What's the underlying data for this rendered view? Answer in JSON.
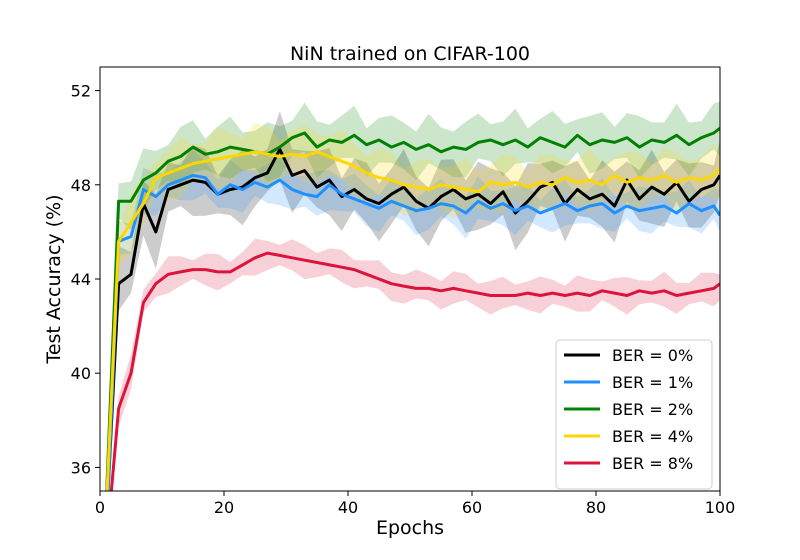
{
  "chart_data": {
    "type": "line",
    "title": "NiN trained on CIFAR-100",
    "xlabel": "Epochs",
    "ylabel": "Test Accuracy (%)",
    "xlim": [
      0,
      100
    ],
    "ylim": [
      35,
      53
    ],
    "xticks": [
      0,
      20,
      40,
      60,
      80,
      100
    ],
    "yticks": [
      36,
      40,
      44,
      48,
      52
    ],
    "grid": false,
    "legend_position": "lower-right",
    "shaded_band": "variability band around each mean line",
    "x": [
      1,
      3,
      5,
      7,
      9,
      11,
      13,
      15,
      17,
      19,
      21,
      23,
      25,
      27,
      29,
      31,
      33,
      35,
      37,
      39,
      41,
      43,
      45,
      47,
      49,
      51,
      53,
      55,
      57,
      59,
      61,
      63,
      65,
      67,
      69,
      71,
      73,
      75,
      77,
      79,
      81,
      83,
      85,
      87,
      89,
      91,
      93,
      95,
      97,
      99,
      100
    ],
    "series": [
      {
        "name": "BER = 0%",
        "color": "#000000",
        "band": 1.2,
        "values": [
          33.5,
          43.8,
          44.2,
          47.2,
          46.0,
          47.8,
          48.0,
          48.2,
          48.1,
          47.6,
          47.8,
          47.9,
          48.3,
          48.5,
          49.5,
          48.4,
          48.6,
          47.9,
          48.2,
          47.5,
          47.8,
          47.4,
          47.2,
          47.6,
          47.9,
          47.3,
          47.0,
          47.5,
          47.8,
          47.4,
          47.6,
          47.2,
          47.7,
          46.8,
          47.3,
          47.9,
          48.1,
          47.2,
          47.8,
          47.4,
          47.6,
          47.1,
          48.2,
          47.4,
          47.9,
          47.6,
          48.1,
          47.3,
          47.8,
          48.0,
          48.4
        ]
      },
      {
        "name": "BER = 1%",
        "color": "#1e90ff",
        "band": 0.8,
        "values": [
          33.0,
          45.6,
          45.8,
          47.8,
          47.5,
          48.0,
          48.2,
          48.4,
          48.3,
          47.6,
          48.0,
          47.8,
          48.1,
          47.9,
          48.2,
          47.8,
          47.6,
          47.5,
          48.0,
          47.6,
          47.4,
          47.2,
          47.0,
          47.3,
          47.1,
          46.9,
          47.0,
          47.2,
          47.1,
          46.8,
          47.3,
          47.0,
          47.2,
          46.9,
          47.1,
          46.8,
          47.0,
          47.2,
          46.9,
          47.1,
          47.2,
          46.8,
          47.1,
          46.9,
          47.0,
          47.1,
          46.8,
          47.2,
          46.9,
          47.1,
          46.7
        ]
      },
      {
        "name": "BER = 2%",
        "color": "#008000",
        "band": 1.0,
        "values": [
          34.5,
          47.3,
          47.3,
          48.2,
          48.5,
          49.0,
          49.2,
          49.6,
          49.3,
          49.4,
          49.6,
          49.5,
          49.4,
          49.3,
          49.6,
          50.0,
          50.2,
          49.6,
          49.9,
          49.8,
          50.1,
          49.7,
          49.9,
          49.6,
          49.8,
          49.5,
          49.7,
          49.4,
          49.6,
          49.5,
          49.8,
          49.9,
          49.7,
          49.9,
          49.6,
          50.0,
          49.8,
          49.6,
          50.1,
          49.7,
          49.9,
          49.8,
          50.0,
          49.6,
          49.9,
          49.8,
          50.1,
          49.7,
          50.0,
          50.2,
          50.4
        ]
      },
      {
        "name": "BER = 4%",
        "color": "#ffd700",
        "band": 1.0,
        "values": [
          34.2,
          45.6,
          46.4,
          47.2,
          48.3,
          48.5,
          48.7,
          48.9,
          49.0,
          49.1,
          49.2,
          49.3,
          49.4,
          49.3,
          49.2,
          49.3,
          49.2,
          49.4,
          49.2,
          49.0,
          48.8,
          48.5,
          48.3,
          48.2,
          48.0,
          47.9,
          47.8,
          48.0,
          47.9,
          47.8,
          47.7,
          48.1,
          48.0,
          48.1,
          47.9,
          48.1,
          48.0,
          48.3,
          48.1,
          48.2,
          48.0,
          48.4,
          48.1,
          48.3,
          48.2,
          48.4,
          48.1,
          48.3,
          48.2,
          48.4,
          48.7
        ]
      },
      {
        "name": "BER = 8%",
        "color": "#dc143c",
        "band": 0.6,
        "values": [
          32.5,
          38.5,
          40.0,
          43.0,
          43.8,
          44.2,
          44.3,
          44.4,
          44.4,
          44.3,
          44.3,
          44.6,
          44.9,
          45.1,
          45.0,
          44.9,
          44.8,
          44.7,
          44.6,
          44.5,
          44.4,
          44.2,
          44.0,
          43.8,
          43.7,
          43.6,
          43.6,
          43.5,
          43.6,
          43.5,
          43.4,
          43.3,
          43.3,
          43.3,
          43.4,
          43.3,
          43.4,
          43.3,
          43.4,
          43.3,
          43.5,
          43.4,
          43.3,
          43.5,
          43.4,
          43.5,
          43.3,
          43.4,
          43.5,
          43.6,
          43.8
        ]
      }
    ]
  }
}
